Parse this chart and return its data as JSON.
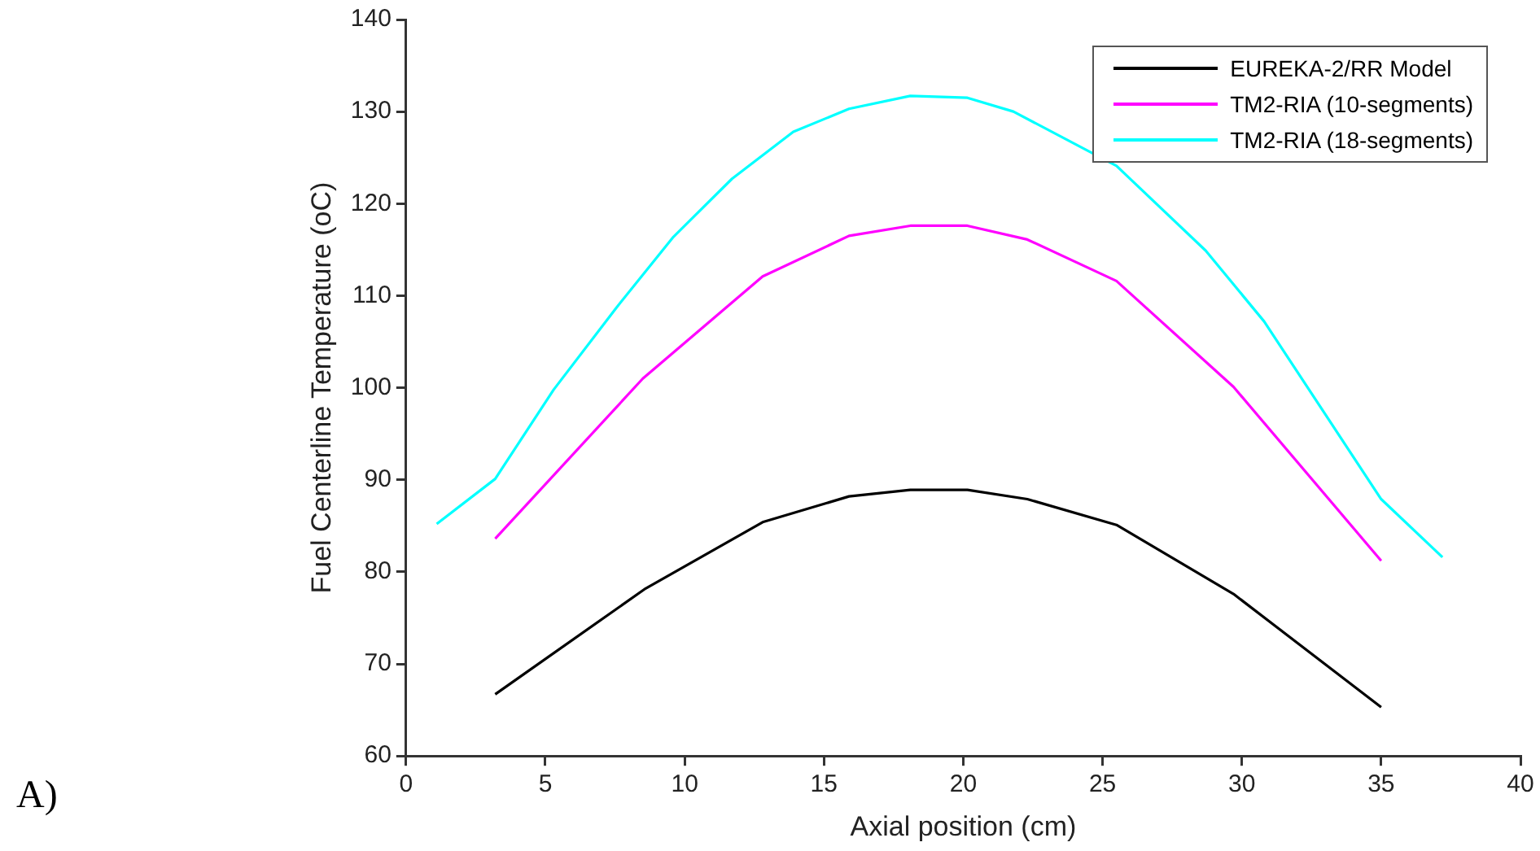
{
  "chart_data": {
    "type": "line",
    "xlabel": "Axial position (cm)",
    "ylabel": "Fuel Centerline Temperature (oC)",
    "annotations": [
      "A)"
    ],
    "xlim": [
      0,
      40
    ],
    "xticks": [
      0,
      5,
      10,
      15,
      20,
      25,
      30,
      35,
      40
    ],
    "ylim": [
      60,
      140
    ],
    "yticks": [
      60,
      70,
      80,
      90,
      100,
      110,
      120,
      130,
      140
    ],
    "grid": false,
    "legend": "top right",
    "line_style": "solid",
    "marker": "none",
    "series": [
      {
        "name": "EUREKA-2/RR Model",
        "color": "#000000",
        "x": [
          3.2,
          8.6,
          12.8,
          15.9,
          18.1,
          20.15,
          22.3,
          25.5,
          29.7,
          35.0
        ],
        "values": [
          66.7,
          78.2,
          85.4,
          88.2,
          88.9,
          88.9,
          87.9,
          85.1,
          77.6,
          65.3
        ]
      },
      {
        "name": "TM2-RIA (10-segments)",
        "color": "#ff00ff",
        "x": [
          3.2,
          8.5,
          12.8,
          15.9,
          18.1,
          20.15,
          22.3,
          25.5,
          29.7,
          35.0
        ],
        "values": [
          83.6,
          101.0,
          112.1,
          116.5,
          117.6,
          117.6,
          116.1,
          111.6,
          100.1,
          81.2
        ]
      },
      {
        "name": "TM2-RIA (18-segments)",
        "color": "#00ffff",
        "x": [
          1.1,
          3.2,
          5.3,
          7.55,
          9.6,
          11.7,
          13.9,
          15.9,
          18.1,
          20.15,
          21.8,
          25.5,
          28.7,
          30.8,
          35.0,
          37.2
        ],
        "values": [
          85.2,
          90.1,
          99.8,
          108.7,
          116.4,
          122.7,
          127.8,
          130.3,
          131.7,
          131.5,
          130.0,
          124.1,
          114.9,
          107.2,
          87.9,
          81.6
        ]
      }
    ]
  }
}
